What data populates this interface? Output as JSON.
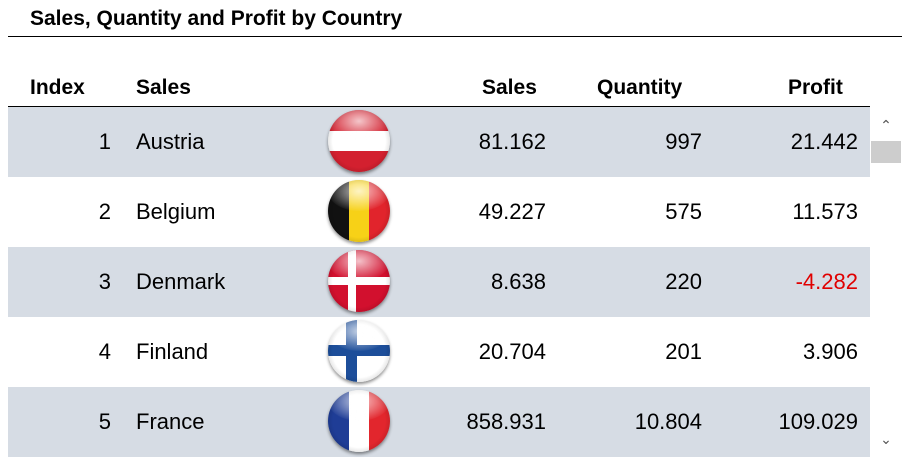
{
  "title": "Sales, Quantity and Profit by Country",
  "headers": {
    "index": "Index",
    "country": "Sales",
    "sales": "Sales",
    "quantity": "Quantity",
    "profit": "Profit"
  },
  "rows": [
    {
      "index": "1",
      "country": "Austria",
      "flag": "austria-flag-icon",
      "sales": "81.162",
      "quantity": "997",
      "profit": "21.442"
    },
    {
      "index": "2",
      "country": "Belgium",
      "flag": "belgium-flag-icon",
      "sales": "49.227",
      "quantity": "575",
      "profit": "11.573"
    },
    {
      "index": "3",
      "country": "Denmark",
      "flag": "denmark-flag-icon",
      "sales": "8.638",
      "quantity": "220",
      "profit": "-4.282"
    },
    {
      "index": "4",
      "country": "Finland",
      "flag": "finland-flag-icon",
      "sales": "20.704",
      "quantity": "201",
      "profit": "3.906"
    },
    {
      "index": "5",
      "country": "France",
      "flag": "france-flag-icon",
      "sales": "858.931",
      "quantity": "10.804",
      "profit": "109.029"
    }
  ],
  "colors": {
    "row_band": "#d6dce4",
    "negative": "#e00000"
  },
  "scrollbar": {
    "up_icon": "chevron-up-icon",
    "down_icon": "chevron-down-icon"
  }
}
